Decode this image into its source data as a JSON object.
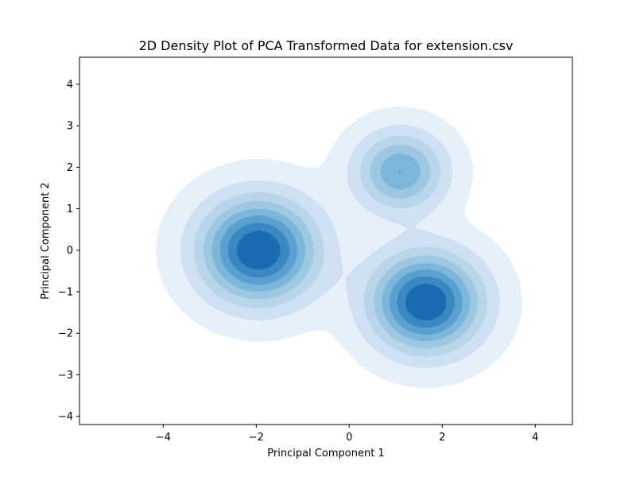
{
  "chart_data": {
    "type": "density",
    "title": "2D Density Plot of PCA Transformed Data for extension.csv",
    "xlabel": "Principal Component 1",
    "ylabel": "Principal Component 2",
    "xlim": [
      -5.8,
      4.8
    ],
    "ylim": [
      -4.2,
      4.65
    ],
    "xticks": [
      -4,
      -2,
      0,
      2,
      4
    ],
    "yticks": [
      -4,
      -3,
      -2,
      -1,
      0,
      1,
      2,
      3,
      4
    ],
    "grid": false,
    "colormap": "Blues",
    "clusters": [
      {
        "center": [
          -1.95,
          0.0
        ],
        "spread": [
          0.85,
          0.85
        ],
        "weight": 1.0
      },
      {
        "center": [
          1.65,
          -1.25
        ],
        "spread": [
          0.8,
          0.8
        ],
        "weight": 1.0
      },
      {
        "center": [
          1.1,
          1.9
        ],
        "spread": [
          0.65,
          0.65
        ],
        "weight": 0.62
      }
    ],
    "levels": [
      {
        "threshold": 0.035,
        "color": "#e6f0fa"
      },
      {
        "threshold": 0.14,
        "color": "#cfe0f2"
      },
      {
        "threshold": 0.26,
        "color": "#b8d5ea"
      },
      {
        "threshold": 0.38,
        "color": "#9dc8e2"
      },
      {
        "threshold": 0.5,
        "color": "#7cb6da"
      },
      {
        "threshold": 0.62,
        "color": "#5aa0d0"
      },
      {
        "threshold": 0.74,
        "color": "#3a87c2"
      },
      {
        "threshold": 0.86,
        "color": "#1c6ab1"
      },
      {
        "threshold": 1.05,
        "color": "#08468a"
      }
    ]
  }
}
